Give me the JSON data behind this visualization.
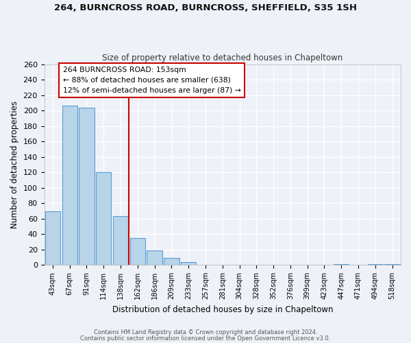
{
  "title_line1": "264, BURNCROSS ROAD, BURNCROSS, SHEFFIELD, S35 1SH",
  "title_line2": "Size of property relative to detached houses in Chapeltown",
  "xlabel": "Distribution of detached houses by size in Chapeltown",
  "ylabel": "Number of detached properties",
  "bar_labels": [
    "43sqm",
    "67sqm",
    "91sqm",
    "114sqm",
    "138sqm",
    "162sqm",
    "186sqm",
    "209sqm",
    "233sqm",
    "257sqm",
    "281sqm",
    "304sqm",
    "328sqm",
    "352sqm",
    "376sqm",
    "399sqm",
    "423sqm",
    "447sqm",
    "471sqm",
    "494sqm",
    "518sqm"
  ],
  "bar_values": [
    69,
    206,
    204,
    120,
    63,
    35,
    19,
    9,
    4,
    0,
    0,
    0,
    0,
    0,
    0,
    0,
    0,
    1,
    0,
    1,
    1
  ],
  "bar_color": "#b8d4e8",
  "bar_edge_color": "#5b9bd5",
  "vline_index": 5,
  "vline_color": "#cc0000",
  "annotation_title": "264 BURNCROSS ROAD: 153sqm",
  "annotation_line1": "← 88% of detached houses are smaller (638)",
  "annotation_line2": "12% of semi-detached houses are larger (87) →",
  "ylim": [
    0,
    260
  ],
  "yticks": [
    0,
    20,
    40,
    60,
    80,
    100,
    120,
    140,
    160,
    180,
    200,
    220,
    240,
    260
  ],
  "footnote1": "Contains HM Land Registry data © Crown copyright and database right 2024.",
  "footnote2": "Contains public sector information licensed under the Open Government Licence v3.0.",
  "bg_color": "#eef2f8"
}
